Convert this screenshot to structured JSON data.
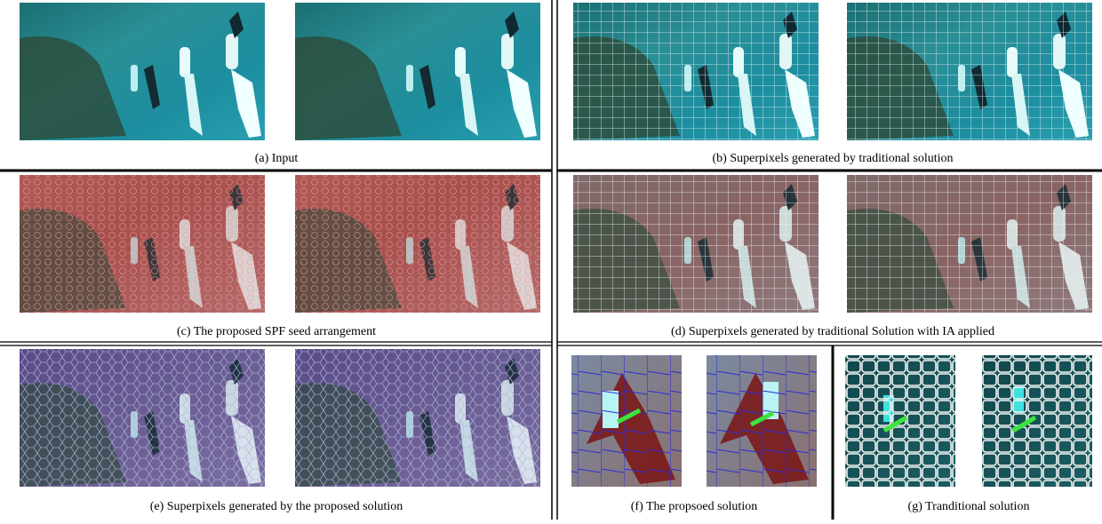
{
  "panels": [
    {
      "caption": "(a) Input"
    },
    {
      "caption": "(b) Superpixels generated by traditional solution"
    },
    {
      "caption": "(c) The proposed SPF seed arrangement"
    },
    {
      "caption": "(d) Superpixels generated by traditional Solution with IA applied"
    },
    {
      "caption": "(e) Superpixels generated by the proposed solution"
    },
    {
      "caption": "(f) The propsoed solution"
    },
    {
      "caption": "(g) Tranditional solution"
    }
  ]
}
